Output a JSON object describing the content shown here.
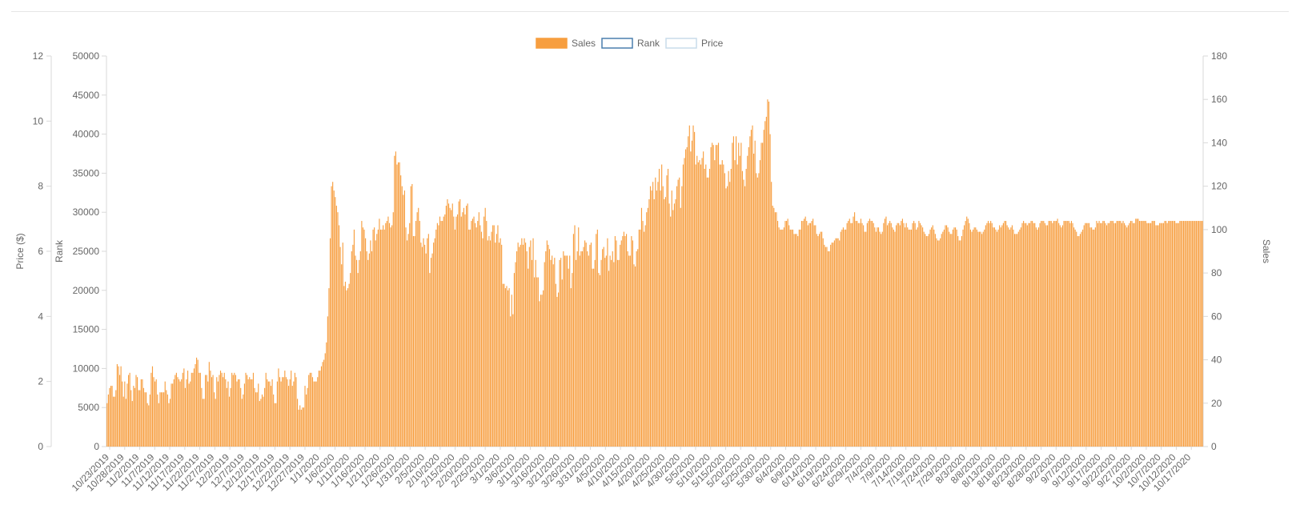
{
  "chart_data": {
    "type": "bar",
    "legend": {
      "placement": "top-center",
      "items": [
        {
          "label": "Sales",
          "style": "filled",
          "color": "#f79e3f"
        },
        {
          "label": "Rank",
          "style": "outline",
          "color": "#4a7fad"
        },
        {
          "label": "Price",
          "style": "outline",
          "color": "#c9dcea"
        }
      ]
    },
    "axes": {
      "price": {
        "label": "Price ($)",
        "position": "left-outer",
        "min": 0,
        "max": 12,
        "ticks": [
          "0",
          "2",
          "4",
          "6",
          "8",
          "10",
          "12"
        ]
      },
      "rank": {
        "label": "Rank",
        "position": "left-inner",
        "min": 0,
        "max": 50000,
        "ticks": [
          "0",
          "5000",
          "10000",
          "15000",
          "20000",
          "25000",
          "30000",
          "35000",
          "40000",
          "45000",
          "50000"
        ]
      },
      "sales": {
        "label": "Sales",
        "position": "right",
        "min": 0,
        "max": 180,
        "ticks": [
          "0",
          "20",
          "40",
          "60",
          "80",
          "100",
          "120",
          "140",
          "160",
          "180"
        ]
      }
    },
    "x": {
      "start_date": "2019-10-23",
      "end_date": "2020-10-21",
      "tick_labels": [
        "10/23/2019",
        "10/28/2019",
        "11/2/2019",
        "11/7/2019",
        "11/12/2019",
        "11/17/2019",
        "11/22/2019",
        "11/27/2019",
        "12/2/2019",
        "12/7/2019",
        "12/12/2019",
        "12/17/2019",
        "12/22/2019",
        "12/27/2019",
        "1/1/2020",
        "1/6/2020",
        "1/11/2020",
        "1/16/2020",
        "1/21/2020",
        "1/26/2020",
        "1/31/2020",
        "2/5/2020",
        "2/10/2020",
        "2/15/2020",
        "2/20/2020",
        "2/25/2020",
        "3/1/2020",
        "3/6/2020",
        "3/11/2020",
        "3/16/2020",
        "3/21/2020",
        "3/26/2020",
        "3/31/2020",
        "4/5/2020",
        "4/10/2020",
        "4/15/2020",
        "4/20/2020",
        "4/25/2020",
        "4/30/2020",
        "5/5/2020",
        "5/10/2020",
        "5/15/2020",
        "5/20/2020",
        "5/25/2020",
        "5/30/2020",
        "6/4/2020",
        "6/9/2020",
        "6/14/2020",
        "6/19/2020",
        "6/24/2020",
        "6/29/2020",
        "7/4/2020",
        "7/9/2020",
        "7/14/2020",
        "7/19/2020",
        "7/24/2020",
        "7/29/2020",
        "8/3/2020",
        "8/8/2020",
        "8/13/2020",
        "8/18/2020",
        "8/23/2020",
        "8/28/2020",
        "9/2/2020",
        "9/7/2020",
        "9/12/2020",
        "9/17/2020",
        "9/22/2020",
        "9/27/2020",
        "10/2/2020",
        "10/7/2020",
        "10/12/2020",
        "10/17/2020"
      ]
    },
    "series": [
      {
        "name": "Sales",
        "kind": "bar",
        "axis": "sales",
        "color": "#f79e3f",
        "values": [
          20,
          24,
          27,
          28,
          28,
          23,
          23,
          26,
          38,
          37,
          33,
          37,
          30,
          23,
          30,
          22,
          29,
          33,
          34,
          26,
          21,
          28,
          27,
          33,
          32,
          26,
          26,
          31,
          31,
          27,
          25,
          25,
          20,
          19,
          24,
          34,
          37,
          32,
          30,
          31,
          24,
          20,
          25,
          25,
          25,
          25,
          30,
          26,
          24,
          20,
          22,
          29,
          29,
          31,
          33,
          34,
          32,
          31,
          30,
          31,
          34,
          36,
          27,
          31,
          35,
          29,
          30,
          34,
          34,
          36,
          38,
          41,
          40,
          34,
          34,
          27,
          22,
          22,
          33,
          33,
          30,
          39,
          35,
          32,
          33,
          25,
          22,
          32,
          30,
          33,
          35,
          34,
          32,
          34,
          31,
          27,
          30,
          23,
          27,
          34,
          33,
          34,
          33,
          30,
          31,
          31,
          27,
          22,
          24,
          29,
          34,
          33,
          31,
          32,
          31,
          31,
          34,
          27,
          25,
          25,
          29,
          21,
          22,
          24,
          23,
          27,
          34,
          31,
          30,
          30,
          28,
          31,
          24,
          20,
          20,
          30,
          36,
          32,
          30,
          32,
          32,
          35,
          32,
          31,
          28,
          31,
          35,
          28,
          30,
          34,
          32,
          22,
          17,
          19,
          17,
          18,
          18,
          28,
          24,
          27,
          33,
          34,
          34,
          32,
          30,
          30,
          30,
          32,
          35,
          35,
          37,
          39,
          40,
          43,
          48,
          60,
          73,
          96,
          120,
          122,
          118,
          115,
          111,
          108,
          102,
          92,
          84,
          94,
          74,
          76,
          72,
          73,
          75,
          80,
          90,
          93,
          100,
          88,
          86,
          80,
          86,
          90,
          104,
          101,
          100,
          96,
          90,
          86,
          89,
          95,
          90,
          100,
          101,
          95,
          98,
          100,
          105,
          100,
          100,
          102,
          100,
          103,
          104,
          106,
          103,
          101,
          102,
          108,
          134,
          136,
          130,
          131,
          131,
          125,
          120,
          116,
          118,
          101,
          95,
          98,
          103,
          120,
          121,
          97,
          97,
          104,
          108,
          110,
          104,
          94,
          92,
          96,
          93,
          89,
          96,
          98,
          80,
          87,
          89,
          94,
          96,
          100,
          103,
          102,
          106,
          104,
          104,
          106,
          107,
          111,
          114,
          112,
          110,
          109,
          112,
          106,
          100,
          106,
          107,
          113,
          114,
          106,
          108,
          110,
          107,
          111,
          112,
          100,
          100,
          104,
          105,
          106,
          103,
          101,
          104,
          108,
          102,
          99,
          96,
          106,
          110,
          104,
          95,
          97,
          95,
          99,
          102,
          102,
          94,
          98,
          102,
          94,
          96,
          93,
          75,
          75,
          73,
          74,
          72,
          73,
          60,
          70,
          61,
          80,
          85,
          90,
          94,
          92,
          93,
          96,
          93,
          96,
          94,
          90,
          82,
          92,
          95,
          86,
          96,
          78,
          86,
          78,
          78,
          67,
          70,
          70,
          72,
          85,
          90,
          95,
          93,
          91,
          86,
          88,
          84,
          87,
          75,
          69,
          71,
          86,
          87,
          77,
          90,
          88,
          88,
          88,
          82,
          88,
          73,
          80,
          98,
          102,
          86,
          90,
          101,
          88,
          90,
          90,
          92,
          95,
          94,
          90,
          88,
          93,
          94,
          82,
          82,
          86,
          98,
          100,
          80,
          79,
          86,
          91,
          92,
          87,
          88,
          96,
          81,
          88,
          86,
          90,
          85,
          97,
          95,
          86,
          86,
          93,
          95,
          97,
          99,
          97,
          98,
          90,
          88,
          88,
          97,
          95,
          84,
          83,
          90,
          91,
          100,
          100,
          110,
          104,
          99,
          102,
          108,
          110,
          114,
          120,
          118,
          122,
          114,
          124,
          118,
          122,
          128,
          118,
          130,
          120,
          114,
          115,
          125,
          128,
          112,
          106,
          118,
          109,
          112,
          114,
          120,
          123,
          124,
          110,
          120,
          130,
          133,
          137,
          138,
          143,
          148,
          136,
          141,
          148,
          145,
          130,
          134,
          131,
          132,
          130,
          133,
          136,
          128,
          130,
          124,
          124,
          128,
          138,
          140,
          139,
          132,
          139,
          139,
          140,
          130,
          130,
          132,
          130,
          126,
          119,
          120,
          127,
          122,
          128,
          140,
          143,
          132,
          143,
          130,
          140,
          134,
          140,
          127,
          123,
          120,
          128,
          134,
          138,
          143,
          146,
          148,
          135,
          141,
          126,
          124,
          126,
          132,
          140,
          140,
          146,
          150,
          152,
          160,
          159,
          144,
          122,
          111,
          110,
          108,
          108,
          104,
          101,
          100,
          100,
          100,
          101,
          104,
          104,
          105,
          102,
          100,
          100,
          100,
          98,
          98,
          98,
          97,
          100,
          100,
          104,
          104,
          105,
          106,
          104,
          102,
          103,
          103,
          104,
          105,
          102,
          102,
          98,
          97,
          98,
          99,
          99,
          96,
          93,
          92,
          92,
          90,
          90,
          93,
          94,
          94,
          95,
          96,
          96,
          96,
          95,
          99,
          100,
          101,
          100,
          100,
          103,
          104,
          105,
          103,
          103,
          106,
          108,
          104,
          104,
          103,
          103,
          105,
          103,
          102,
          99,
          99,
          103,
          104,
          105,
          104,
          104,
          103,
          101,
          99,
          101,
          101,
          99,
          98,
          99,
          103,
          105,
          106,
          102,
          103,
          104,
          103,
          101,
          100,
          99,
          102,
          103,
          103,
          102,
          104,
          105,
          103,
          101,
          103,
          101,
          100,
          100,
          100,
          103,
          104,
          103,
          100,
          101,
          104,
          103,
          102,
          101,
          99,
          98,
          97,
          97,
          98,
          100,
          101,
          102,
          100,
          98,
          96,
          95,
          95,
          96,
          98,
          99,
          100,
          102,
          102,
          101,
          99,
          98,
          98,
          100,
          101,
          101,
          100,
          97,
          95,
          95,
          97,
          100,
          102,
          104,
          106,
          105,
          103,
          100,
          99,
          100,
          101,
          101,
          100,
          99,
          99,
          99,
          98,
          99,
          100,
          102,
          103,
          104,
          103,
          104,
          103,
          101,
          101,
          100,
          99,
          100,
          102,
          101,
          102,
          103,
          104,
          104,
          102,
          101,
          100,
          101,
          102,
          100,
          98,
          98,
          98,
          99,
          100,
          101,
          103,
          104,
          103,
          103,
          102,
          103,
          103,
          104,
          104,
          103,
          103,
          101,
          100,
          101,
          103,
          104,
          104,
          104,
          103,
          102,
          102,
          104,
          104,
          104,
          103,
          104,
          104,
          104,
          105,
          103,
          102,
          101,
          102,
          104,
          104,
          104,
          104,
          104,
          103,
          104,
          103,
          101,
          100,
          99,
          97,
          97,
          98,
          99,
          100,
          102,
          103,
          103,
          103,
          103,
          101,
          101,
          100,
          100,
          101,
          104,
          103,
          104,
          103,
          103,
          104,
          104,
          103,
          102,
          103,
          103,
          104,
          104,
          104,
          103,
          103,
          104,
          104,
          104,
          104,
          103,
          104,
          103,
          102,
          101,
          102,
          103,
          104,
          104,
          103,
          103,
          105,
          105,
          105,
          104,
          104,
          104,
          104,
          104,
          104,
          103,
          103,
          103,
          103,
          104,
          104,
          104,
          102,
          102,
          102,
          103,
          103,
          103,
          103,
          104,
          104,
          103,
          104,
          104,
          104,
          104,
          104,
          104,
          103,
          103,
          103,
          104,
          104,
          104,
          104,
          104,
          104,
          104,
          104,
          104,
          104,
          104,
          104,
          104,
          104,
          104,
          104,
          104,
          104,
          104
        ]
      }
    ]
  }
}
